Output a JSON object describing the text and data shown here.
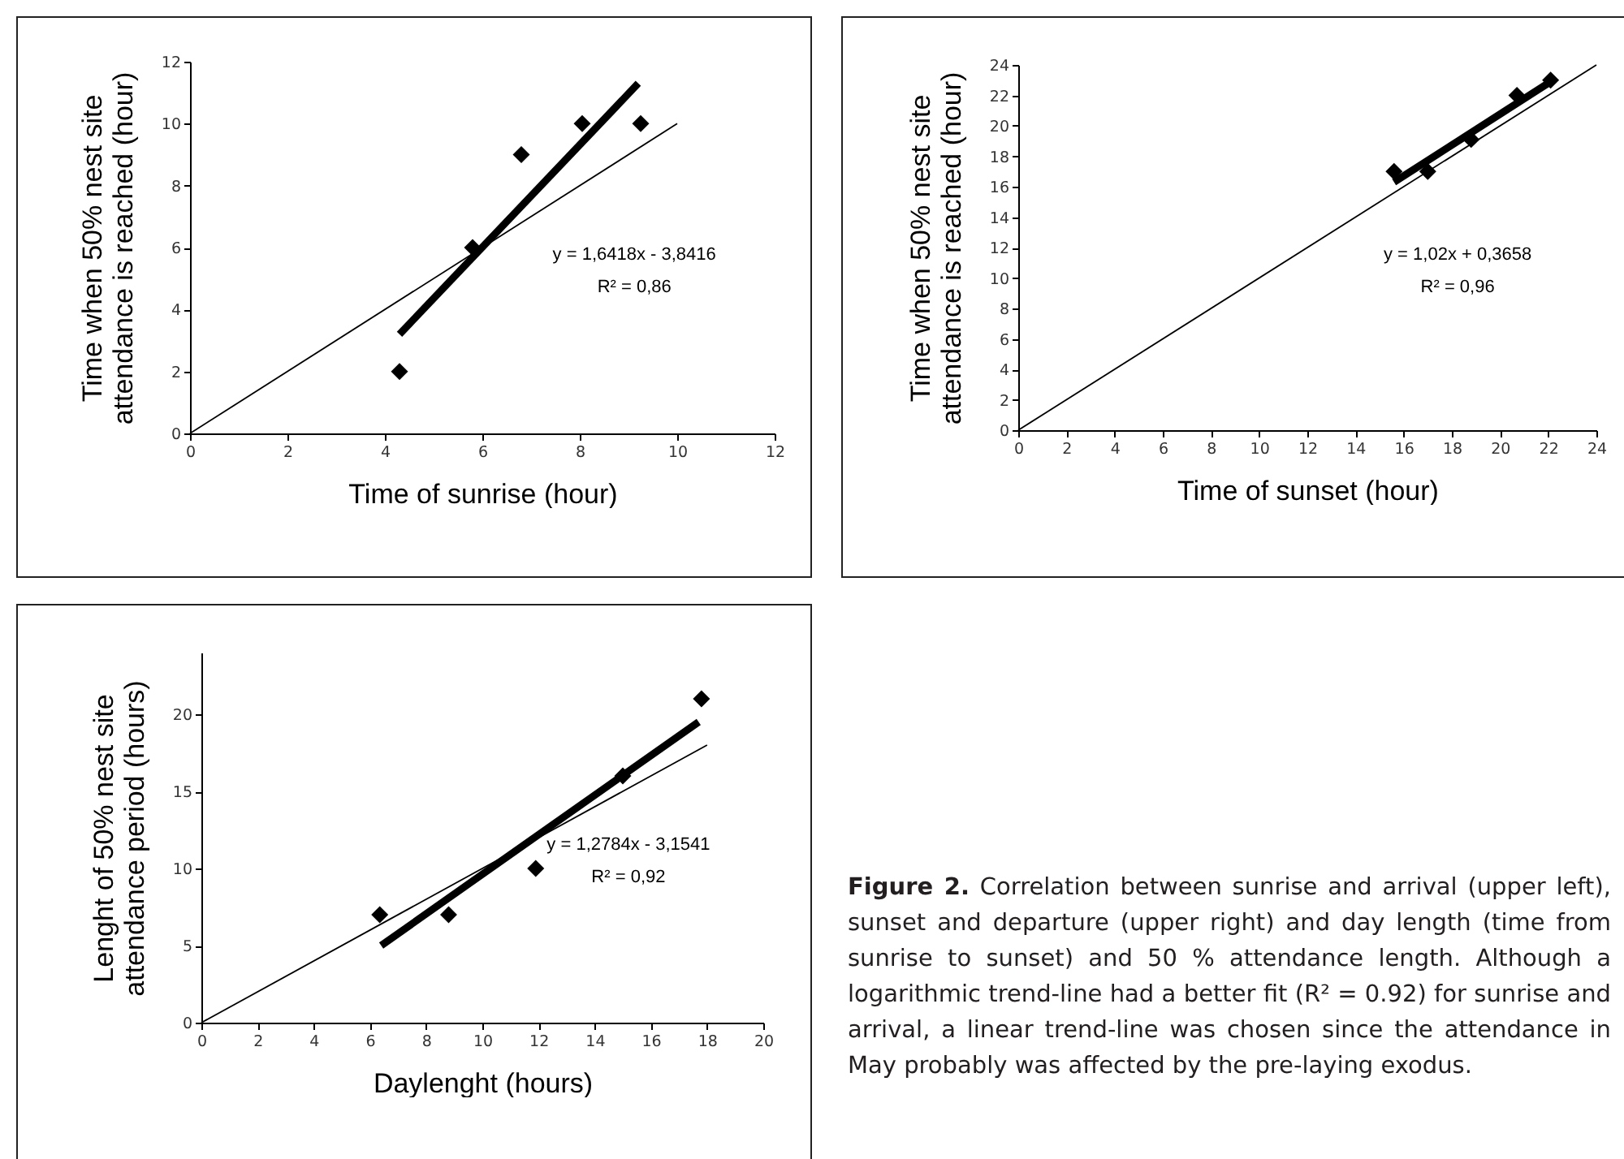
{
  "chart_data": [
    {
      "type": "scatter",
      "xlabel": "Time of sunrise (hour)",
      "ylabel": "Time when 50% nest site attendance is reached (hour)",
      "xlim": [
        0,
        12
      ],
      "ylim": [
        0,
        12
      ],
      "xticks": [
        0,
        2,
        4,
        6,
        8,
        10,
        12
      ],
      "yticks": [
        0,
        2,
        4,
        6,
        8,
        10,
        12
      ],
      "annotations": [
        "y = 1,6418x - 3,8416",
        "R² = 0,86"
      ],
      "series": [
        {
          "type": "scatter",
          "marker": "diamond",
          "color": "#000000",
          "x": [
            4.3,
            5.8,
            6.8,
            8.05,
            9.25
          ],
          "values": [
            2,
            6,
            9,
            10,
            10
          ]
        },
        {
          "type": "line",
          "color": "#000000",
          "line_style": "solid",
          "x": [
            4.3,
            9.2
          ],
          "values": [
            3.2,
            11.3
          ]
        },
        {
          "type": "line",
          "color": "#000000",
          "line_style": "solid",
          "x": [
            0,
            10
          ],
          "values": [
            0,
            10
          ]
        }
      ]
    },
    {
      "type": "scatter",
      "xlabel": "Time of sunset (hour)",
      "ylabel": "Time when 50% nest site attendance is reached (hour)",
      "xlim": [
        0,
        24
      ],
      "ylim": [
        0,
        24
      ],
      "xticks": [
        0,
        2,
        4,
        6,
        8,
        10,
        12,
        14,
        16,
        18,
        20,
        22,
        24
      ],
      "yticks": [
        0,
        2,
        4,
        6,
        8,
        10,
        12,
        14,
        16,
        18,
        20,
        22,
        24
      ],
      "annotations": [
        "y = 1,02x + 0,3658",
        "R² = 0,96"
      ],
      "series": [
        {
          "type": "scatter",
          "marker": "diamond",
          "color": "#000000",
          "x": [
            15.6,
            17,
            18.8,
            20.7,
            22.1
          ],
          "values": [
            17,
            17,
            19.1,
            22,
            23
          ]
        },
        {
          "type": "line",
          "color": "#000000",
          "line_style": "solid",
          "x": [
            15.6,
            22.1
          ],
          "values": [
            16.3,
            22.9
          ]
        },
        {
          "type": "line",
          "color": "#000000",
          "line_style": "solid",
          "x": [
            0,
            24
          ],
          "values": [
            0,
            24
          ]
        }
      ]
    },
    {
      "type": "scatter",
      "xlabel": "Daylenght (hours)",
      "ylabel": "Lenght of 50% nest site attendance period (hours)",
      "xlim": [
        0,
        20
      ],
      "ylim": [
        0,
        24
      ],
      "xticks": [
        0,
        2,
        4,
        6,
        8,
        10,
        12,
        14,
        16,
        18,
        20
      ],
      "yticks": [
        0,
        5,
        10,
        15,
        20
      ],
      "annotations": [
        "y = 1,2784x - 3,1541",
        "R² = 0,92"
      ],
      "series": [
        {
          "type": "scatter",
          "marker": "diamond",
          "color": "#000000",
          "x": [
            6.35,
            8.8,
            11.9,
            15,
            17.8
          ],
          "values": [
            7,
            7,
            10,
            16,
            21
          ]
        },
        {
          "type": "line",
          "color": "#000000",
          "line_style": "solid",
          "x": [
            6.4,
            17.7
          ],
          "values": [
            5,
            19.5
          ]
        },
        {
          "type": "line",
          "color": "#000000",
          "line_style": "solid",
          "x": [
            0,
            18
          ],
          "values": [
            0,
            18
          ]
        }
      ]
    },
    {
      "type": "other",
      "annotations": [
        "Figure 2. Correlation between sunrise and arrival (upper left), sunset and departure (upper right) and day length (time from sunrise to sunset) and 50 % attendance length. Although a logarithmic trend-line had a better fit (R² = 0.92) for sunrise and arrival, a linear trend-line was chosen since the attendance in May probably was affected by the pre-laying exodus."
      ]
    }
  ]
}
